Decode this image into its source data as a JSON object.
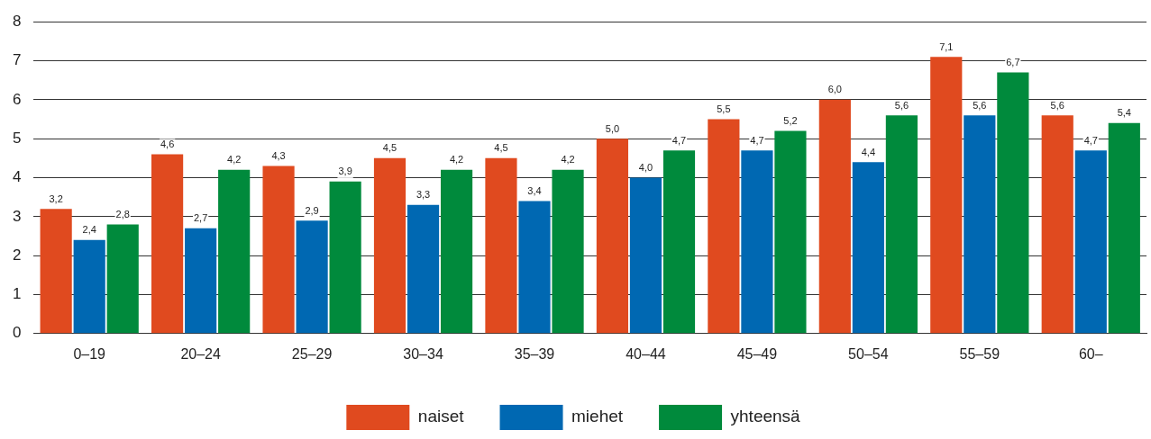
{
  "chart_data": {
    "type": "bar",
    "categories": [
      "0–19",
      "20–24",
      "25–29",
      "30–34",
      "35–39",
      "40–44",
      "45–49",
      "50–54",
      "55–59",
      "60–"
    ],
    "series": [
      {
        "name": "naiset",
        "color": "#e04a1f",
        "values": [
          3.2,
          4.6,
          4.3,
          4.5,
          4.5,
          5.0,
          5.5,
          6.0,
          7.1,
          5.6
        ],
        "value_labels": [
          "3,2",
          "4,6",
          "4,3",
          "4,5",
          "4,5",
          "5,0",
          "5,5",
          "6,0",
          "7,1",
          "5,6"
        ]
      },
      {
        "name": "miehet",
        "color": "#0068b2",
        "values": [
          2.4,
          2.7,
          2.9,
          3.3,
          3.4,
          4.0,
          4.7,
          4.4,
          5.6,
          4.7
        ],
        "value_labels": [
          "2,4",
          "2,7",
          "2,9",
          "3,3",
          "3,4",
          "4,0",
          "4,7",
          "4,4",
          "5,6",
          "4,7"
        ]
      },
      {
        "name": "yhteensä",
        "color": "#008a3c",
        "values": [
          2.8,
          4.2,
          3.9,
          4.2,
          4.2,
          4.7,
          5.2,
          5.6,
          6.7,
          5.4
        ],
        "value_labels": [
          "2,8",
          "4,2",
          "3,9",
          "4,2",
          "4,2",
          "4,7",
          "5,2",
          "5,6",
          "6,7",
          "5,4"
        ]
      }
    ],
    "ylim": [
      0,
      8
    ],
    "yticks": [
      0,
      1,
      2,
      3,
      4,
      5,
      6,
      7,
      8
    ],
    "grid": "y",
    "legend": "bottom"
  }
}
